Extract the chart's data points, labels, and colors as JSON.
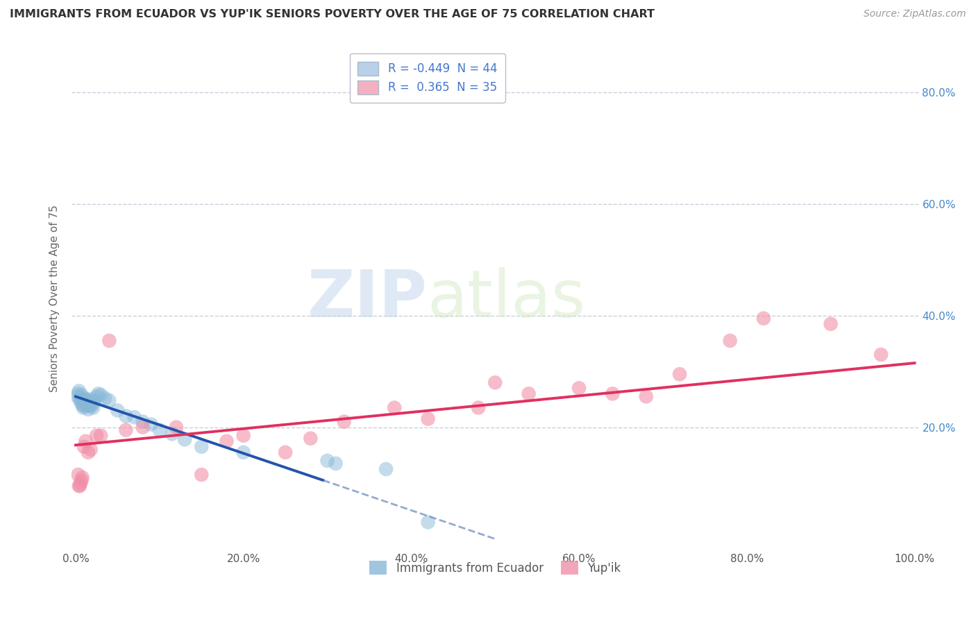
{
  "title": "IMMIGRANTS FROM ECUADOR VS YUP'IK SENIORS POVERTY OVER THE AGE OF 75 CORRELATION CHART",
  "source": "Source: ZipAtlas.com",
  "ylabel": "Seniors Poverty Over the Age of 75",
  "xlim": [
    -0.005,
    1.005
  ],
  "ylim": [
    -0.02,
    0.88
  ],
  "legend_entries": [
    {
      "label": "R = -0.449  N = 44",
      "color": "#b8d0e8"
    },
    {
      "label": "R =  0.365  N = 35",
      "color": "#f4b0c0"
    }
  ],
  "legend_labels_bottom": [
    "Immigrants from Ecuador",
    "Yup'ik"
  ],
  "watermark_zip": "ZIP",
  "watermark_atlas": "atlas",
  "background_color": "#ffffff",
  "grid_color": "#c8d0dc",
  "ecuador_color": "#88b8d8",
  "yupik_color": "#f090a8",
  "ecuador_scatter": {
    "x": [
      0.002,
      0.003,
      0.004,
      0.005,
      0.006,
      0.007,
      0.008,
      0.008,
      0.009,
      0.01,
      0.01,
      0.011,
      0.012,
      0.013,
      0.013,
      0.014,
      0.015,
      0.015,
      0.016,
      0.017,
      0.018,
      0.019,
      0.02,
      0.021,
      0.022,
      0.025,
      0.027,
      0.03,
      0.035,
      0.04,
      0.05,
      0.06,
      0.07,
      0.08,
      0.09,
      0.1,
      0.115,
      0.13,
      0.15,
      0.2,
      0.3,
      0.31,
      0.37,
      0.42
    ],
    "y": [
      0.255,
      0.26,
      0.265,
      0.25,
      0.245,
      0.258,
      0.248,
      0.24,
      0.235,
      0.238,
      0.252,
      0.245,
      0.25,
      0.242,
      0.248,
      0.24,
      0.238,
      0.232,
      0.245,
      0.242,
      0.25,
      0.238,
      0.242,
      0.235,
      0.248,
      0.255,
      0.26,
      0.258,
      0.252,
      0.248,
      0.23,
      0.22,
      0.218,
      0.21,
      0.205,
      0.195,
      0.188,
      0.178,
      0.165,
      0.155,
      0.14,
      0.135,
      0.125,
      0.03
    ]
  },
  "yupik_scatter": {
    "x": [
      0.003,
      0.004,
      0.005,
      0.006,
      0.007,
      0.008,
      0.01,
      0.012,
      0.015,
      0.018,
      0.025,
      0.03,
      0.04,
      0.06,
      0.08,
      0.12,
      0.15,
      0.18,
      0.2,
      0.25,
      0.28,
      0.32,
      0.38,
      0.42,
      0.48,
      0.5,
      0.54,
      0.6,
      0.64,
      0.68,
      0.72,
      0.78,
      0.82,
      0.9,
      0.96
    ],
    "y": [
      0.115,
      0.095,
      0.095,
      0.1,
      0.105,
      0.11,
      0.165,
      0.175,
      0.155,
      0.16,
      0.185,
      0.185,
      0.355,
      0.195,
      0.2,
      0.2,
      0.115,
      0.175,
      0.185,
      0.155,
      0.18,
      0.21,
      0.235,
      0.215,
      0.235,
      0.28,
      0.26,
      0.27,
      0.26,
      0.255,
      0.295,
      0.355,
      0.395,
      0.385,
      0.33
    ]
  },
  "ecuador_trend": {
    "x_start": 0.0,
    "x_end": 0.295,
    "y_start": 0.255,
    "y_end": 0.105
  },
  "ecuador_trend_dashed": {
    "x_start": 0.295,
    "x_end": 0.5,
    "y_start": 0.105,
    "y_end": 0.0
  },
  "yupik_trend": {
    "x_start": 0.0,
    "x_end": 1.0,
    "y_start": 0.168,
    "y_end": 0.315
  },
  "xtick_labels": [
    "0.0%",
    "20.0%",
    "40.0%",
    "60.0%",
    "80.0%",
    "100.0%"
  ],
  "xtick_values": [
    0.0,
    0.2,
    0.4,
    0.6,
    0.8,
    1.0
  ],
  "ytick_labels": [
    "20.0%",
    "40.0%",
    "60.0%",
    "80.0%"
  ],
  "ytick_values": [
    0.2,
    0.4,
    0.6,
    0.8
  ],
  "grid_yticks": [
    0.2,
    0.4,
    0.6,
    0.8
  ]
}
